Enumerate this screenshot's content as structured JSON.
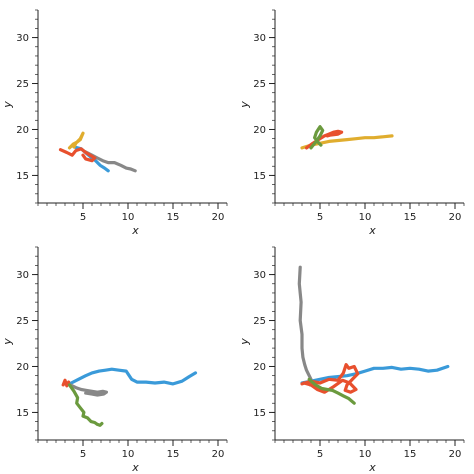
{
  "colors": {
    "blue": "#3a9ad9",
    "gray": "#888888",
    "red": "#e8502e",
    "yellow": "#e0ad2e",
    "green": "#6b9a3e"
  },
  "chart_data": [
    {
      "type": "line",
      "title": "",
      "xlabel": "x",
      "ylabel": "y",
      "xlim": [
        0,
        21
      ],
      "ylim": [
        12,
        33
      ],
      "xticks": [
        "5",
        "10",
        "15",
        "20"
      ],
      "yticks": [
        "15",
        "20",
        "25",
        "30"
      ],
      "grid": false,
      "series": [
        {
          "color": "blue",
          "x": [
            4.0,
            4.8,
            5.5,
            6.0,
            6.4,
            6.9,
            7.4,
            7.8
          ],
          "y": [
            18.1,
            17.9,
            17.3,
            16.9,
            16.6,
            16.1,
            15.8,
            15.5
          ]
        },
        {
          "color": "gray",
          "x": [
            5.2,
            6.0,
            6.6,
            7.2,
            7.8,
            8.5,
            9.2,
            9.8,
            10.3,
            10.8
          ],
          "y": [
            17.6,
            17.2,
            16.9,
            16.6,
            16.4,
            16.4,
            16.1,
            15.8,
            15.7,
            15.5
          ]
        },
        {
          "color": "red",
          "x": [
            2.5,
            3.2,
            3.8,
            4.2,
            4.8,
            5.3,
            5.8,
            6.3,
            6.0,
            5.3,
            5.0
          ],
          "y": [
            17.8,
            17.5,
            17.2,
            17.7,
            17.9,
            17.5,
            17.2,
            16.9,
            16.6,
            16.8,
            17.2
          ]
        },
        {
          "color": "yellow",
          "x": [
            3.5,
            3.9,
            4.3,
            4.7,
            5.0,
            4.7,
            4.2,
            4.0
          ],
          "y": [
            18.0,
            18.4,
            18.6,
            18.9,
            19.6,
            19.0,
            18.5,
            18.1
          ]
        }
      ]
    },
    {
      "type": "line",
      "title": "",
      "xlabel": "x",
      "ylabel": "y",
      "xlim": [
        0,
        21
      ],
      "ylim": [
        12,
        33
      ],
      "xticks": [
        "5",
        "10",
        "15",
        "20"
      ],
      "yticks": [
        "15",
        "20",
        "25",
        "30"
      ],
      "grid": false,
      "series": [
        {
          "color": "yellow",
          "x": [
            3.0,
            4.0,
            5.0,
            6.0,
            7.0,
            8.0,
            9.0,
            10.0,
            11.0,
            12.0,
            13.0
          ],
          "y": [
            18.0,
            18.3,
            18.5,
            18.7,
            18.8,
            18.9,
            19.0,
            19.1,
            19.1,
            19.2,
            19.3
          ]
        },
        {
          "color": "red",
          "x": [
            3.5,
            4.2,
            5.0,
            5.5,
            6.0,
            6.5,
            7.0,
            7.4,
            7.0,
            6.2,
            5.8
          ],
          "y": [
            18.0,
            18.5,
            19.0,
            19.3,
            19.5,
            19.7,
            19.8,
            19.7,
            19.5,
            19.4,
            19.3
          ]
        },
        {
          "color": "green",
          "x": [
            4.0,
            4.5,
            5.0,
            5.3,
            5.0,
            4.6,
            4.4,
            4.8,
            5.1
          ],
          "y": [
            18.0,
            18.6,
            19.3,
            19.9,
            20.3,
            19.7,
            19.1,
            18.6,
            18.3
          ]
        }
      ]
    },
    {
      "type": "line",
      "title": "",
      "xlabel": "x",
      "ylabel": "y",
      "xlim": [
        0,
        21
      ],
      "ylim": [
        12,
        33
      ],
      "xticks": [
        "5",
        "10",
        "15",
        "20"
      ],
      "yticks": [
        "15",
        "20",
        "25",
        "30"
      ],
      "grid": false,
      "series": [
        {
          "color": "blue",
          "x": [
            3.7,
            4.5,
            5.3,
            6.0,
            6.8,
            7.5,
            8.2,
            9.0,
            9.8,
            10.4,
            11.0,
            12.0,
            13.0,
            14.0,
            15.0,
            16.0,
            16.8,
            17.5
          ],
          "y": [
            18.2,
            18.6,
            19.0,
            19.3,
            19.5,
            19.6,
            19.7,
            19.6,
            19.5,
            18.6,
            18.3,
            18.3,
            18.2,
            18.3,
            18.1,
            18.4,
            18.9,
            19.3
          ]
        },
        {
          "color": "gray",
          "x": [
            3.6,
            4.2,
            4.8,
            5.4,
            6.0,
            6.6,
            7.2,
            7.6,
            7.3,
            6.6,
            6.0,
            5.3
          ],
          "y": [
            18.0,
            17.7,
            17.5,
            17.4,
            17.3,
            17.2,
            17.3,
            17.2,
            17.0,
            16.9,
            17.0,
            17.1
          ]
        },
        {
          "color": "red",
          "x": [
            2.8,
            3.0,
            3.2,
            3.4
          ],
          "y": [
            18.0,
            18.5,
            17.9,
            18.3
          ]
        },
        {
          "color": "green",
          "x": [
            3.5,
            4.0,
            4.4,
            4.3,
            4.7,
            5.1,
            5.0,
            5.5,
            5.9,
            6.3,
            6.6,
            6.9,
            7.1
          ],
          "y": [
            18.0,
            17.3,
            16.6,
            16.0,
            15.5,
            15.0,
            14.6,
            14.4,
            14.0,
            13.9,
            13.7,
            13.6,
            13.8
          ]
        }
      ]
    },
    {
      "type": "line",
      "title": "",
      "xlabel": "x",
      "ylabel": "y",
      "xlim": [
        0,
        21
      ],
      "ylim": [
        12,
        33
      ],
      "xticks": [
        "5",
        "10",
        "15",
        "20"
      ],
      "yticks": [
        "15",
        "20",
        "25",
        "30"
      ],
      "grid": false,
      "series": [
        {
          "color": "gray",
          "x": [
            2.8,
            2.7,
            2.9,
            2.8,
            3.0,
            3.0,
            3.1,
            3.3,
            3.5,
            3.8,
            4.0,
            4.1,
            3.9
          ],
          "y": [
            30.8,
            29.0,
            27.0,
            25.0,
            23.5,
            22.0,
            21.0,
            20.2,
            19.6,
            19.0,
            18.6,
            18.3,
            18.0
          ]
        },
        {
          "color": "blue",
          "x": [
            3.0,
            4.0,
            5.0,
            6.0,
            7.0,
            8.0,
            9.0,
            10.0,
            11.0,
            12.0,
            13.0,
            14.0,
            15.0,
            16.0,
            17.0,
            18.0,
            19.2
          ],
          "y": [
            18.2,
            18.4,
            18.6,
            18.8,
            18.9,
            19.0,
            19.2,
            19.5,
            19.8,
            19.8,
            19.9,
            19.7,
            19.8,
            19.7,
            19.5,
            19.6,
            20.0
          ]
        },
        {
          "color": "red",
          "x": [
            3.0,
            4.0,
            5.0,
            6.0,
            7.0,
            7.6,
            7.9,
            8.2,
            8.8,
            9.2,
            8.6,
            8.0,
            7.8,
            8.4,
            9.0,
            8.3,
            7.5,
            6.5,
            5.5,
            4.7,
            4.0,
            3.2
          ],
          "y": [
            18.1,
            18.4,
            18.2,
            18.6,
            18.5,
            19.3,
            20.2,
            19.8,
            20.0,
            19.2,
            18.6,
            18.0,
            17.4,
            17.2,
            17.5,
            18.2,
            18.5,
            17.8,
            17.2,
            17.5,
            18.0,
            18.2
          ]
        },
        {
          "color": "green",
          "x": [
            3.8,
            4.5,
            5.2,
            5.8,
            6.4,
            7.0,
            7.6,
            8.2,
            8.8
          ],
          "y": [
            18.6,
            18.0,
            17.6,
            17.5,
            17.4,
            17.1,
            16.8,
            16.5,
            16.0
          ]
        }
      ]
    }
  ]
}
